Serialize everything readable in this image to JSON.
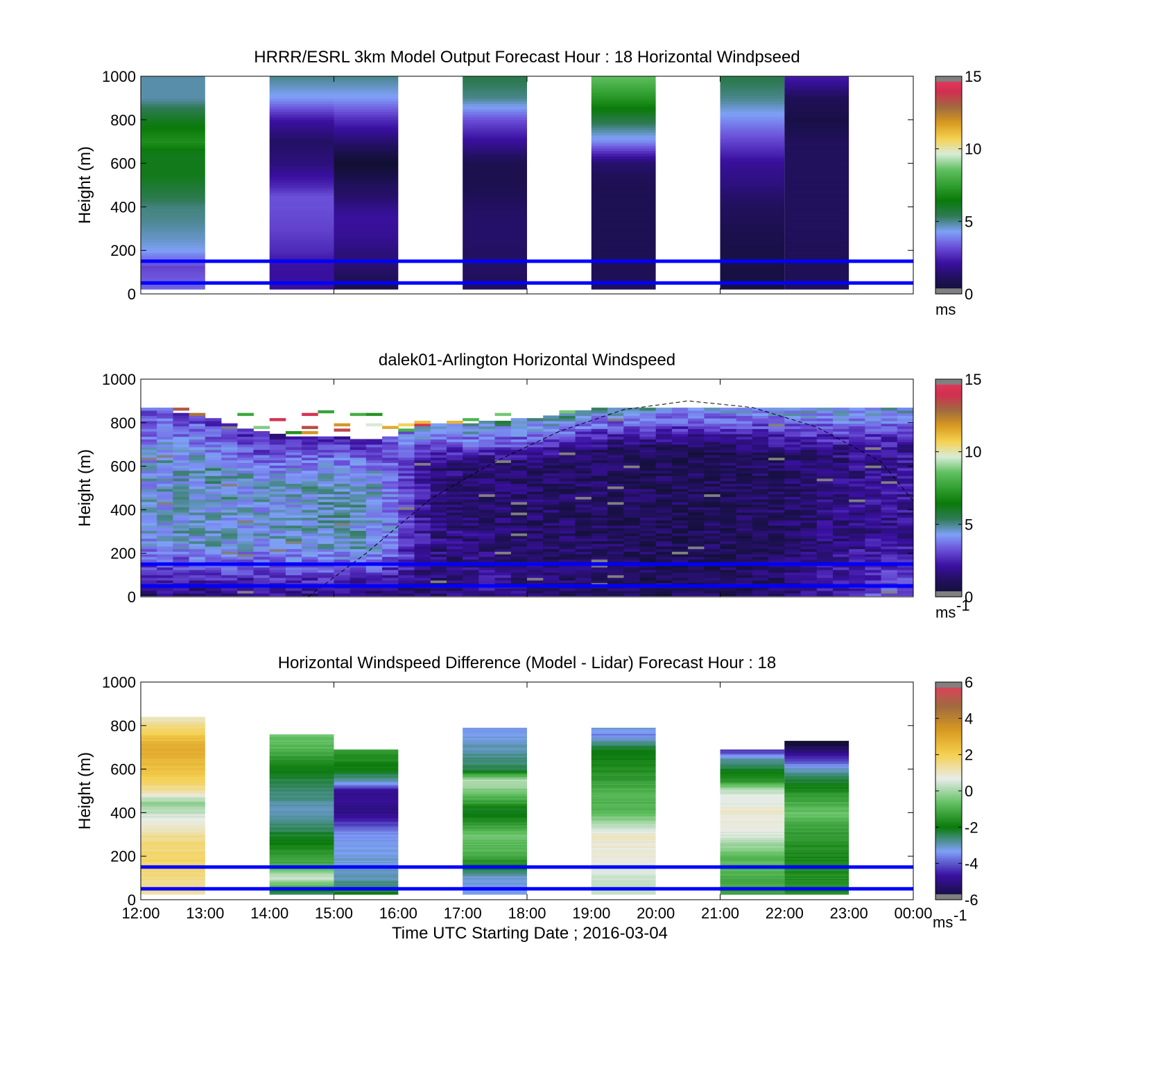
{
  "colors": {
    "speed_scale": [
      "#101030",
      "#20105a",
      "#3a10a0",
      "#6a4fd8",
      "#7fa0f8",
      "#2f7a56",
      "#0a7a0a",
      "#31a031",
      "#62c062",
      "#d8ecd8",
      "#f5d050",
      "#d89a20",
      "#a06a40",
      "#d03050",
      "#e83a60"
    ],
    "diff_scale": [
      "#101030",
      "#3a10a0",
      "#7fa0f8",
      "#0a7a0a",
      "#62c062",
      "#e8ecea",
      "#f5d050",
      "#d89a20",
      "#a06a40",
      "#e83a60"
    ],
    "highlight_line": "#0000ff",
    "missing": "#808080"
  },
  "chart_data": [
    {
      "type": "heatmap",
      "title": "HRRR/ESRL 3km Model Output   Forecast Hour : 18 Horizontal Windpseed",
      "xlabel": "",
      "ylabel": "Height (m)",
      "xlim": [
        12,
        24
      ],
      "ylim": [
        0,
        1000
      ],
      "yticks": [
        "0",
        "200",
        "400",
        "600",
        "800",
        "1000"
      ],
      "colorbar": {
        "ticks": [
          "0",
          "5",
          "10",
          "15"
        ],
        "range": [
          0,
          15
        ],
        "unit": "ms"
      },
      "reference_lines_m": [
        50,
        150
      ],
      "columns": [
        {
          "hour": 12,
          "values": [
            [
              25,
              3.5
            ],
            [
              50,
              3.4
            ],
            [
              75,
              3.3
            ],
            [
              100,
              3.2
            ],
            [
              125,
              3.0
            ],
            [
              150,
              3.6
            ],
            [
              175,
              3.8
            ],
            [
              200,
              4.3
            ],
            [
              250,
              4.6
            ],
            [
              300,
              4.8
            ],
            [
              350,
              5.0
            ],
            [
              400,
              5.1
            ],
            [
              450,
              5.5
            ],
            [
              500,
              5.9
            ],
            [
              550,
              6.2
            ],
            [
              600,
              6.2
            ],
            [
              650,
              6.2
            ],
            [
              700,
              7.0
            ],
            [
              800,
              6.1
            ],
            [
              900,
              4.8
            ],
            [
              1000,
              4.8
            ]
          ]
        },
        {
          "hour": 14,
          "values": [
            [
              25,
              2.0
            ],
            [
              50,
              2.1
            ],
            [
              100,
              2.1
            ],
            [
              150,
              2.2
            ],
            [
              200,
              2.6
            ],
            [
              250,
              2.8
            ],
            [
              300,
              3.0
            ],
            [
              350,
              3.1
            ],
            [
              400,
              3.2
            ],
            [
              450,
              3.2
            ],
            [
              500,
              2.5
            ],
            [
              600,
              1.6
            ],
            [
              700,
              1.2
            ],
            [
              800,
              2.2
            ],
            [
              900,
              4.2
            ],
            [
              1000,
              5.0
            ]
          ]
        },
        {
          "hour": 15,
          "values": [
            [
              25,
              0.6
            ],
            [
              50,
              0.9
            ],
            [
              100,
              1.2
            ],
            [
              150,
              1.5
            ],
            [
              200,
              1.6
            ],
            [
              250,
              1.9
            ],
            [
              300,
              2.0
            ],
            [
              350,
              2.1
            ],
            [
              400,
              1.8
            ],
            [
              450,
              1.3
            ],
            [
              500,
              1.1
            ],
            [
              600,
              0.0
            ],
            [
              700,
              1.4
            ],
            [
              800,
              2.6
            ],
            [
              900,
              4.2
            ],
            [
              1000,
              5.0
            ]
          ]
        },
        {
          "hour": 17,
          "values": [
            [
              25,
              1.0
            ],
            [
              50,
              1.0
            ],
            [
              100,
              1.2
            ],
            [
              150,
              1.2
            ],
            [
              200,
              1.2
            ],
            [
              300,
              1.3
            ],
            [
              400,
              1.2
            ],
            [
              500,
              0.8
            ],
            [
              600,
              0.8
            ],
            [
              700,
              2.0
            ],
            [
              800,
              3.2
            ],
            [
              900,
              5.0
            ],
            [
              1000,
              5.5
            ]
          ]
        },
        {
          "hour": 19,
          "values": [
            [
              25,
              1.0
            ],
            [
              50,
              1.0
            ],
            [
              100,
              1.0
            ],
            [
              200,
              0.9
            ],
            [
              300,
              0.9
            ],
            [
              400,
              0.9
            ],
            [
              500,
              0.9
            ],
            [
              600,
              1.3
            ],
            [
              700,
              4.0
            ],
            [
              800,
              5.6
            ],
            [
              900,
              7.2
            ],
            [
              1000,
              8.5
            ]
          ]
        },
        {
          "hour": 21,
          "values": [
            [
              25,
              0.4
            ],
            [
              50,
              0.4
            ],
            [
              100,
              0.5
            ],
            [
              150,
              0.6
            ],
            [
              200,
              0.6
            ],
            [
              250,
              0.7
            ],
            [
              300,
              0.8
            ],
            [
              350,
              1.0
            ],
            [
              400,
              1.1
            ],
            [
              450,
              1.3
            ],
            [
              500,
              1.6
            ],
            [
              600,
              2.0
            ],
            [
              700,
              3.0
            ],
            [
              800,
              4.0
            ],
            [
              900,
              5.0
            ],
            [
              1000,
              5.5
            ]
          ]
        },
        {
          "hour": 22,
          "values": [
            [
              25,
              1.0
            ],
            [
              100,
              1.0
            ],
            [
              200,
              1.0
            ],
            [
              300,
              1.1
            ],
            [
              400,
              1.1
            ],
            [
              500,
              1.1
            ],
            [
              600,
              1.1
            ],
            [
              700,
              1.1
            ],
            [
              800,
              0.6
            ],
            [
              900,
              1.0
            ],
            [
              1000,
              2.4
            ]
          ]
        }
      ]
    },
    {
      "type": "heatmap",
      "title": "dalek01-Arlington  Horizontal Windspeed",
      "xlabel": "",
      "ylabel": "Height (m)",
      "xlim": [
        12,
        24
      ],
      "ylim": [
        0,
        1000
      ],
      "yticks": [
        "0",
        "200",
        "400",
        "600",
        "800",
        "1000"
      ],
      "colorbar": {
        "ticks": [
          "0",
          "5",
          "10",
          "15"
        ],
        "range": [
          0,
          15
        ],
        "unit": "ms",
        "unit_superscript": "-1"
      },
      "reference_lines_m": [
        50,
        150
      ],
      "dashed_curve": {
        "x": [
          14.6,
          15.5,
          16.5,
          17.5,
          18.5,
          19.5,
          20.5,
          21.5,
          22.5,
          23.5,
          24.0
        ],
        "y": [
          0,
          200,
          450,
          620,
          760,
          860,
          900,
          870,
          780,
          620,
          440
        ]
      },
      "profile_anchors": [
        {
          "hour": 12.0,
          "top": 880,
          "low": 1.5,
          "mid": 4.2,
          "high": 3.2
        },
        {
          "hour": 13.0,
          "top": 820,
          "low": 1.4,
          "mid": 4.6,
          "high": 3.0
        },
        {
          "hour": 14.0,
          "top": 740,
          "low": 1.8,
          "mid": 4.3,
          "high": 2.0
        },
        {
          "hour": 15.0,
          "top": 730,
          "low": 1.5,
          "mid": 4.6,
          "high": 2.4
        },
        {
          "hour": 15.7,
          "top": 720,
          "low": 1.4,
          "mid": 4.4,
          "high": 2.6
        },
        {
          "hour": 16.5,
          "top": 790,
          "low": 1.3,
          "mid": 1.7,
          "high": 4.8
        },
        {
          "hour": 17.5,
          "top": 800,
          "low": 2.2,
          "mid": 1.4,
          "high": 5.2
        },
        {
          "hour": 18.5,
          "top": 830,
          "low": 1.3,
          "mid": 1.2,
          "high": 5.0
        },
        {
          "hour": 19.5,
          "top": 900,
          "low": 1.1,
          "mid": 1.0,
          "high": 5.4
        },
        {
          "hour": 20.5,
          "top": 900,
          "low": 0.9,
          "mid": 1.0,
          "high": 5.0
        },
        {
          "hour": 21.5,
          "top": 880,
          "low": 1.0,
          "mid": 1.0,
          "high": 4.8
        },
        {
          "hour": 22.5,
          "top": 860,
          "low": 2.0,
          "mid": 1.5,
          "high": 4.6
        },
        {
          "hour": 23.5,
          "top": 900,
          "low": 3.3,
          "mid": 2.0,
          "high": 5.0
        }
      ]
    },
    {
      "type": "heatmap",
      "title": "Horizontal Windspeed Difference (Model - Lidar) Forecast Hour : 18",
      "xlabel": "Time UTC  Starting Date ; 2016-03-04",
      "ylabel": "Height (m)",
      "xlim": [
        12,
        24
      ],
      "ylim": [
        0,
        1000
      ],
      "xticks": [
        "12:00",
        "13:00",
        "14:00",
        "15:00",
        "16:00",
        "17:00",
        "18:00",
        "19:00",
        "20:00",
        "21:00",
        "22:00",
        "23:00",
        "00:00"
      ],
      "yticks": [
        "0",
        "200",
        "400",
        "600",
        "800",
        "1000"
      ],
      "colorbar": {
        "ticks": [
          "-6",
          "-4",
          "-2",
          "0",
          "2",
          "4",
          "6"
        ],
        "range": [
          -6,
          6
        ],
        "unit": "ms",
        "unit_superscript": "-1"
      },
      "reference_lines_m": [
        50,
        150
      ],
      "columns": [
        {
          "hour": 12,
          "top": 840,
          "values": [
            [
              25,
              1.2
            ],
            [
              100,
              1.6
            ],
            [
              200,
              1.8
            ],
            [
              300,
              1.4
            ],
            [
              400,
              0.3
            ],
            [
              450,
              -0.2
            ],
            [
              500,
              1.4
            ],
            [
              600,
              2.4
            ],
            [
              700,
              3.0
            ],
            [
              800,
              1.5
            ],
            [
              840,
              1.0
            ]
          ]
        },
        {
          "hour": 14,
          "top": 760,
          "values": [
            [
              25,
              -2.6
            ],
            [
              100,
              0.6
            ],
            [
              150,
              -1.0
            ],
            [
              200,
              -1.4
            ],
            [
              300,
              -2.2
            ],
            [
              400,
              -3.0
            ],
            [
              500,
              -2.6
            ],
            [
              600,
              -2.0
            ],
            [
              700,
              -0.8
            ],
            [
              760,
              -0.6
            ]
          ]
        },
        {
          "hour": 15,
          "top": 690,
          "values": [
            [
              25,
              -2.0
            ],
            [
              100,
              -3.0
            ],
            [
              200,
              -3.2
            ],
            [
              300,
              -3.4
            ],
            [
              400,
              -5.0
            ],
            [
              500,
              -4.8
            ],
            [
              550,
              -2.8
            ],
            [
              600,
              -2.0
            ],
            [
              690,
              -1.4
            ]
          ]
        },
        {
          "hour": 17,
          "top": 790,
          "values": [
            [
              25,
              -3.2
            ],
            [
              100,
              -3.2
            ],
            [
              200,
              -1.0
            ],
            [
              300,
              -0.6
            ],
            [
              400,
              -2.2
            ],
            [
              500,
              -0.4
            ],
            [
              550,
              0.2
            ],
            [
              600,
              -2.4
            ],
            [
              700,
              -3.0
            ],
            [
              790,
              -3.4
            ]
          ]
        },
        {
          "hour": 19,
          "top": 790,
          "values": [
            [
              25,
              0.2
            ],
            [
              100,
              0.4
            ],
            [
              200,
              0.8
            ],
            [
              300,
              1.0
            ],
            [
              400,
              -0.8
            ],
            [
              500,
              -1.0
            ],
            [
              600,
              -1.6
            ],
            [
              700,
              -2.2
            ],
            [
              760,
              -3.6
            ],
            [
              790,
              -3.0
            ]
          ]
        },
        {
          "hour": 21,
          "top": 690,
          "values": [
            [
              25,
              -1.2
            ],
            [
              100,
              -1.0
            ],
            [
              200,
              -0.8
            ],
            [
              300,
              0.6
            ],
            [
              400,
              0.9
            ],
            [
              500,
              0.4
            ],
            [
              550,
              -1.6
            ],
            [
              600,
              -2.2
            ],
            [
              650,
              -3.0
            ],
            [
              690,
              -4.6
            ]
          ]
        },
        {
          "hour": 22,
          "top": 730,
          "values": [
            [
              25,
              -1.6
            ],
            [
              100,
              -1.6
            ],
            [
              200,
              -1.8
            ],
            [
              300,
              -1.4
            ],
            [
              400,
              -0.6
            ],
            [
              500,
              -1.6
            ],
            [
              600,
              -3.0
            ],
            [
              650,
              -4.4
            ],
            [
              730,
              -6.2
            ]
          ]
        }
      ]
    }
  ]
}
